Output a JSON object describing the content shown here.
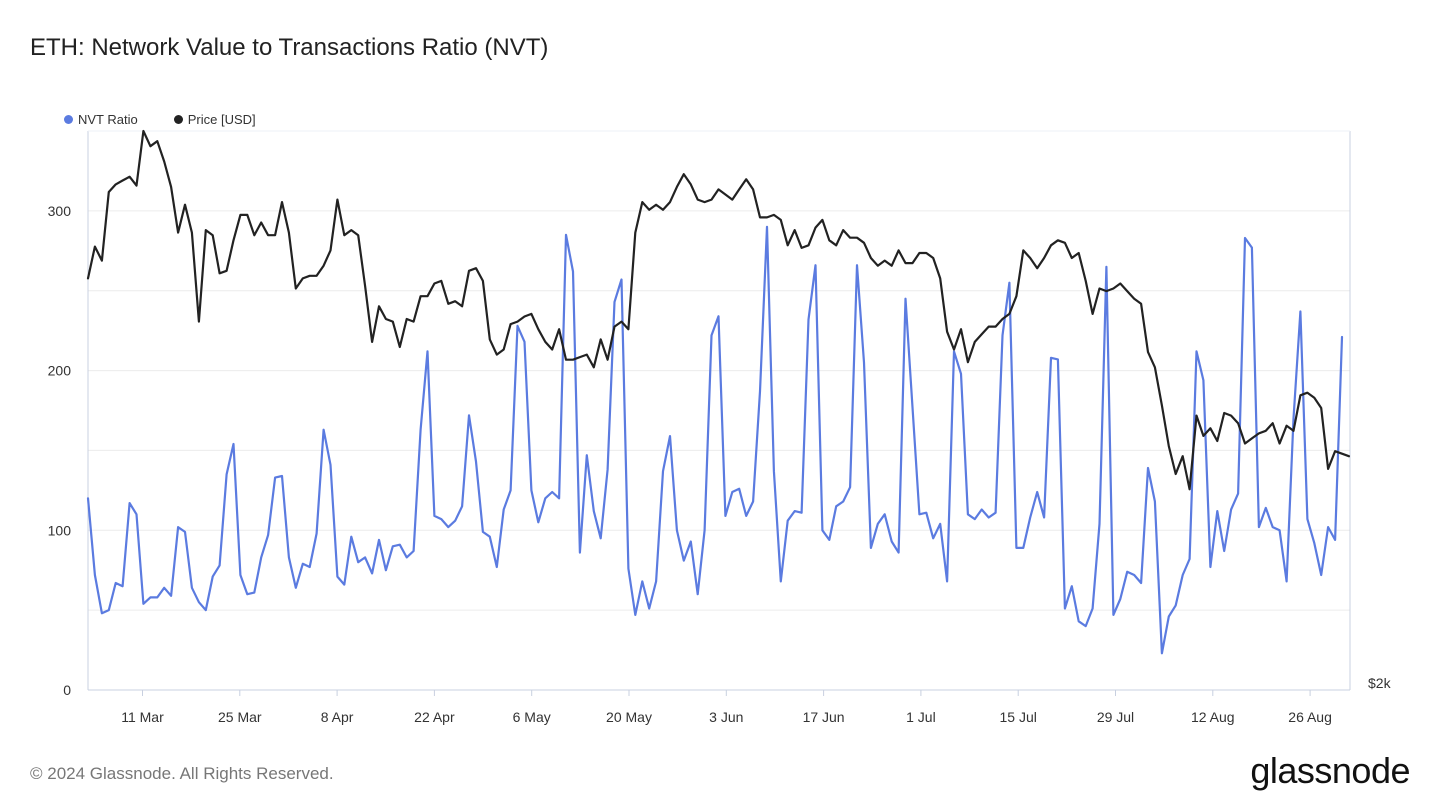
{
  "title": "ETH: Network Value to Transactions Ratio (NVT)",
  "footer": "© 2024 Glassnode. All Rights Reserved.",
  "brand": "glassnode",
  "colors": {
    "nvt": "#5b7be0",
    "price": "#222222",
    "grid": "#ececec",
    "axis": "#c8d0e0"
  },
  "chart_data": {
    "type": "line",
    "title": "ETH: Network Value to Transactions Ratio (NVT)",
    "legend": [
      "NVT Ratio",
      "Price [USD]"
    ],
    "legend_position": "top-left",
    "x_ticks": [
      "11 Mar",
      "25 Mar",
      "8 Apr",
      "22 Apr",
      "6 May",
      "20 May",
      "3 Jun",
      "17 Jun",
      "1 Jul",
      "15 Jul",
      "29 Jul",
      "12 Aug",
      "26 Aug"
    ],
    "y_left_ticks": [
      "0",
      "100",
      "200",
      "300"
    ],
    "y_left_range": [
      0,
      350
    ],
    "y_right_ticks": [
      "$2k"
    ],
    "y_right_range_usd": [
      2000,
      4200
    ],
    "grid": true,
    "series": [
      {
        "name": "NVT Ratio",
        "axis": "left",
        "values": [
          120,
          72,
          48,
          50,
          67,
          65,
          117,
          110,
          54,
          58,
          58,
          64,
          59,
          102,
          99,
          64,
          55,
          50,
          71,
          78,
          135,
          154,
          72,
          60,
          61,
          83,
          97,
          133,
          134,
          83,
          64,
          79,
          77,
          98,
          163,
          141,
          71,
          66,
          96,
          80,
          83,
          73,
          94,
          75,
          90,
          91,
          83,
          87,
          163,
          212,
          109,
          107,
          102,
          106,
          115,
          172,
          143,
          99,
          96,
          77,
          113,
          125,
          228,
          218,
          125,
          105,
          120,
          124,
          120,
          285,
          262,
          86,
          147,
          112,
          95,
          138,
          243,
          257,
          76,
          47,
          68,
          51,
          68,
          137,
          159,
          100,
          81,
          93,
          60,
          100,
          222,
          234,
          109,
          124,
          126,
          109,
          118,
          187,
          290,
          137,
          68,
          106,
          112,
          111,
          232,
          266,
          100,
          94,
          115,
          118,
          127,
          266,
          205,
          89,
          104,
          110,
          93,
          86,
          245,
          177,
          110,
          111,
          95,
          104,
          68,
          212,
          198,
          110,
          107,
          113,
          108,
          111,
          222,
          255,
          89,
          89,
          108,
          124,
          108,
          208,
          207,
          51,
          65,
          43,
          40,
          51,
          104,
          265,
          47,
          57,
          74,
          72,
          67,
          139,
          118,
          23,
          46,
          53,
          72,
          82,
          212,
          194,
          77,
          112,
          87,
          113,
          123,
          283,
          277,
          102,
          114,
          102,
          100,
          68,
          170,
          237,
          107,
          92,
          72,
          102,
          94,
          221
        ]
      },
      {
        "name": "Price [USD]",
        "axis": "right",
        "values": [
          3620,
          3745,
          3690,
          3960,
          3990,
          4005,
          4020,
          3985,
          4200,
          4140,
          4160,
          4080,
          3980,
          3800,
          3910,
          3800,
          3450,
          3810,
          3790,
          3640,
          3650,
          3770,
          3870,
          3870,
          3790,
          3840,
          3790,
          3790,
          3920,
          3800,
          3580,
          3620,
          3630,
          3630,
          3670,
          3730,
          3930,
          3790,
          3810,
          3790,
          3590,
          3370,
          3510,
          3460,
          3450,
          3350,
          3460,
          3450,
          3550,
          3550,
          3600,
          3610,
          3520,
          3530,
          3510,
          3650,
          3660,
          3610,
          3380,
          3320,
          3340,
          3440,
          3450,
          3470,
          3480,
          3420,
          3370,
          3340,
          3420,
          3300,
          3300,
          3310,
          3320,
          3270,
          3380,
          3300,
          3430,
          3450,
          3420,
          3800,
          3920,
          3890,
          3910,
          3890,
          3920,
          3980,
          4030,
          3990,
          3930,
          3920,
          3930,
          3970,
          3950,
          3930,
          3970,
          4010,
          3970,
          3860,
          3860,
          3870,
          3850,
          3750,
          3810,
          3740,
          3750,
          3820,
          3850,
          3770,
          3750,
          3810,
          3780,
          3780,
          3760,
          3700,
          3670,
          3690,
          3670,
          3730,
          3680,
          3680,
          3720,
          3720,
          3700,
          3620,
          3410,
          3340,
          3420,
          3290,
          3370,
          3400,
          3430,
          3430,
          3460,
          3480,
          3550,
          3730,
          3700,
          3660,
          3700,
          3750,
          3770,
          3760,
          3700,
          3720,
          3610,
          3480,
          3580,
          3570,
          3580,
          3600,
          3570,
          3540,
          3520,
          3330,
          3270,
          3120,
          2960,
          2850,
          2920,
          2790,
          3080,
          3000,
          3030,
          2980,
          3090,
          3080,
          3050,
          2970,
          2990,
          3010,
          3020,
          3050,
          2970,
          3040,
          3020,
          3160,
          3170,
          3150,
          3110,
          2870,
          2940,
          2930,
          2920
        ]
      }
    ]
  }
}
